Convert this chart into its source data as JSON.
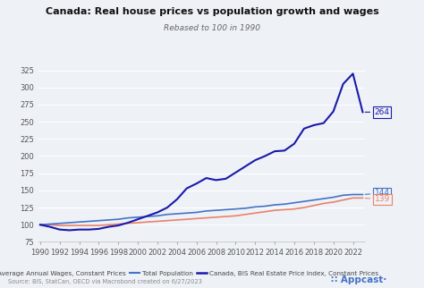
{
  "title": "Canada: Real house prices vs population growth and wages",
  "subtitle": "Rebased to 100 in 1990",
  "source_text": "Source: BIS, StatCan, OECD via Macrobond created on 6/27/2023",
  "ylim": [
    75,
    335
  ],
  "yticks": [
    75,
    100,
    125,
    150,
    175,
    200,
    225,
    250,
    275,
    300,
    325
  ],
  "years": [
    1990,
    1991,
    1992,
    1993,
    1994,
    1995,
    1996,
    1997,
    1998,
    1999,
    2000,
    2001,
    2002,
    2003,
    2004,
    2005,
    2006,
    2007,
    2008,
    2009,
    2010,
    2011,
    2012,
    2013,
    2014,
    2015,
    2016,
    2017,
    2018,
    2019,
    2020,
    2021,
    2022,
    2023
  ],
  "wages": [
    100,
    100,
    99,
    99,
    99,
    99,
    99,
    100,
    101,
    102,
    103,
    104,
    105,
    106,
    107,
    108,
    109,
    110,
    111,
    112,
    113,
    115,
    117,
    119,
    121,
    122,
    123,
    125,
    128,
    131,
    133,
    136,
    139,
    139
  ],
  "population": [
    100,
    101,
    102,
    103,
    104,
    105,
    106,
    107,
    108,
    110,
    111,
    112,
    113,
    115,
    116,
    117,
    118,
    120,
    121,
    122,
    123,
    124,
    126,
    127,
    129,
    130,
    132,
    134,
    136,
    138,
    140,
    143,
    144,
    144
  ],
  "house_prices": [
    100,
    97,
    93,
    92,
    93,
    93,
    94,
    97,
    99,
    103,
    108,
    113,
    118,
    125,
    137,
    153,
    160,
    168,
    165,
    167,
    176,
    185,
    194,
    200,
    207,
    208,
    218,
    240,
    245,
    248,
    265,
    305,
    320,
    264
  ],
  "wages_color": "#e8826a",
  "population_color": "#4472c4",
  "house_color": "#1a1aaa",
  "bg_color": "#eef2f7",
  "label_264": "264",
  "label_144": "144",
  "label_139": "139",
  "xtick_years": [
    1990,
    1992,
    1994,
    1996,
    1998,
    2000,
    2002,
    2004,
    2006,
    2008,
    2010,
    2012,
    2014,
    2016,
    2018,
    2020,
    2022
  ],
  "appcast_color": "#4472c4"
}
